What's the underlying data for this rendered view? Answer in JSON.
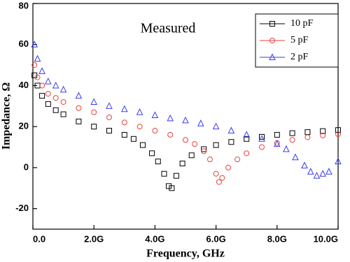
{
  "chart_data": {
    "type": "scatter",
    "title": "Measured",
    "x_label": "Frequency, GHz",
    "y_label": "Impedance, Ω",
    "xlim": [
      0,
      10
    ],
    "ylim": [
      -30,
      80
    ],
    "xticks": [
      {
        "value": 0,
        "label": "0.0"
      },
      {
        "value": 2,
        "label": "2.0G"
      },
      {
        "value": 4,
        "label": "4.0G"
      },
      {
        "value": 6,
        "label": "6.0G"
      },
      {
        "value": 8,
        "label": "8.0G"
      },
      {
        "value": 10,
        "label": "10.0G"
      }
    ],
    "yticks": [
      -20,
      0,
      20,
      40,
      60,
      80
    ],
    "legend": "upper right",
    "series": [
      {
        "name": "10 pF",
        "color": "#000000",
        "marker": "square",
        "x": [
          0.05,
          0.15,
          0.3,
          0.5,
          0.75,
          1,
          1.5,
          2,
          2.5,
          3,
          3.3,
          3.6,
          3.9,
          4.1,
          4.3,
          4.45,
          4.55,
          4.7,
          4.9,
          5.2,
          5.6,
          6,
          6.5,
          7,
          7.5,
          8,
          8.5,
          9,
          9.5,
          10
        ],
        "values": [
          45,
          40,
          35,
          31,
          28,
          26,
          22.5,
          20,
          18,
          16,
          14,
          11,
          7,
          3,
          -3,
          -9,
          -10,
          -4,
          2,
          6,
          9,
          11,
          12.5,
          14,
          15,
          16,
          16.8,
          17.3,
          17.8,
          18.3
        ]
      },
      {
        "name": "5 pF",
        "color": "#e8413c",
        "marker": "circle",
        "x": [
          0.05,
          0.15,
          0.3,
          0.5,
          0.75,
          1,
          1.5,
          2,
          2.5,
          3,
          3.5,
          4,
          4.5,
          5,
          5.3,
          5.6,
          5.8,
          6,
          6.1,
          6.2,
          6.4,
          6.7,
          7,
          7.5,
          8,
          8.5,
          9,
          9.5,
          10
        ],
        "values": [
          50,
          44,
          40,
          36,
          34,
          32,
          29,
          27,
          24.5,
          22,
          20,
          18,
          16,
          13.5,
          11.5,
          8,
          4,
          -3,
          -7,
          -5,
          0,
          4,
          7,
          10,
          12,
          13.5,
          14.8,
          15.7,
          16.3
        ]
      },
      {
        "name": "2 pF",
        "color": "#3b3bf0",
        "marker": "triangle",
        "x": [
          0.05,
          0.15,
          0.3,
          0.5,
          0.75,
          1,
          1.5,
          2,
          2.5,
          3,
          3.5,
          4,
          4.5,
          5,
          5.5,
          6,
          6.5,
          7,
          7.5,
          8,
          8.3,
          8.6,
          8.9,
          9.1,
          9.3,
          9.5,
          9.7,
          10
        ],
        "values": [
          60,
          53,
          47,
          42,
          40,
          38,
          35,
          32,
          30,
          28.5,
          27,
          25.5,
          24,
          23,
          21.5,
          20,
          18,
          16,
          14,
          11.5,
          9,
          5,
          1,
          -2,
          -4,
          -3,
          -2,
          3
        ]
      }
    ]
  }
}
